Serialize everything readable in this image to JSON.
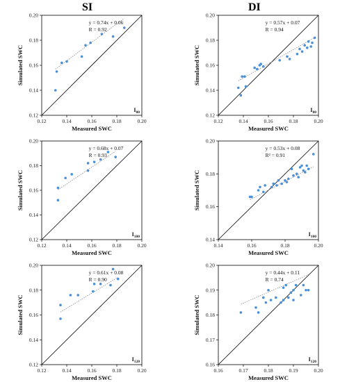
{
  "columns": {
    "left": "SI",
    "right": "DI"
  },
  "chart_data": [
    {
      "type": "scatter",
      "title": "SI",
      "tag": "I80",
      "xlabel": "Measured SWC",
      "ylabel": "Simulated SWC",
      "xlim": [
        0.12,
        0.2
      ],
      "ylim": [
        0.12,
        0.2
      ],
      "xticks": [
        "0.12",
        "0.14",
        "0.16",
        "0.18",
        "0.20"
      ],
      "yticks": [
        "0.12",
        "0.14",
        "0.16",
        "0.18",
        "0.20"
      ],
      "equation": "y = 0.74x + 0.06",
      "r_text": "R = 0.92",
      "fit": {
        "slope": 0.74,
        "intercept": 0.06
      },
      "points": [
        [
          0.131,
          0.14
        ],
        [
          0.132,
          0.155
        ],
        [
          0.136,
          0.162
        ],
        [
          0.14,
          0.163
        ],
        [
          0.152,
          0.167
        ],
        [
          0.155,
          0.176
        ],
        [
          0.159,
          0.178
        ],
        [
          0.168,
          0.185
        ],
        [
          0.177,
          0.183
        ],
        [
          0.186,
          0.19
        ]
      ]
    },
    {
      "type": "scatter",
      "title": "DI",
      "tag": "I80",
      "xlabel": "Measured SWC",
      "ylabel": "Simulated SWC",
      "xlim": [
        0.12,
        0.2
      ],
      "ylim": [
        0.12,
        0.2
      ],
      "xticks": [
        "0.12",
        "0.14",
        "0.16",
        "0.18",
        "0.20"
      ],
      "yticks": [
        "0.12",
        "0.14",
        "0.16",
        "0.18",
        "0.20"
      ],
      "equation": "y = 0.57x + 0.07",
      "r_text": "R = 0.94",
      "fit": {
        "slope": 0.57,
        "intercept": 0.07
      },
      "points": [
        [
          0.136,
          0.142
        ],
        [
          0.138,
          0.136
        ],
        [
          0.139,
          0.151
        ],
        [
          0.141,
          0.151
        ],
        [
          0.142,
          0.143
        ],
        [
          0.149,
          0.158
        ],
        [
          0.151,
          0.157
        ],
        [
          0.153,
          0.16
        ],
        [
          0.154,
          0.161
        ],
        [
          0.156,
          0.159
        ],
        [
          0.169,
          0.164
        ],
        [
          0.175,
          0.167
        ],
        [
          0.177,
          0.165
        ],
        [
          0.183,
          0.169
        ],
        [
          0.185,
          0.173
        ],
        [
          0.187,
          0.171
        ],
        [
          0.189,
          0.176
        ],
        [
          0.191,
          0.174
        ],
        [
          0.192,
          0.179
        ],
        [
          0.194,
          0.175
        ],
        [
          0.195,
          0.178
        ],
        [
          0.197,
          0.182
        ]
      ]
    },
    {
      "type": "scatter",
      "title": "SI",
      "tag": "I100",
      "xlabel": "Measured SWC",
      "ylabel": "Simulated SWC",
      "xlim": [
        0.12,
        0.2
      ],
      "ylim": [
        0.12,
        0.2
      ],
      "xticks": [
        "0.12",
        "0.14",
        "0.16",
        "0.18",
        "0.20"
      ],
      "yticks": [
        "0.12",
        "0.14",
        "0.16",
        "0.18",
        "0.20"
      ],
      "equation": "y = 0.68x + 0.07",
      "r_text": "R = 0.93",
      "fit": {
        "slope": 0.68,
        "intercept": 0.07
      },
      "points": [
        [
          0.133,
          0.152
        ],
        [
          0.133,
          0.162
        ],
        [
          0.139,
          0.17
        ],
        [
          0.144,
          0.173
        ],
        [
          0.157,
          0.176
        ],
        [
          0.157,
          0.182
        ],
        [
          0.162,
          0.183
        ],
        [
          0.167,
          0.185
        ],
        [
          0.173,
          0.191
        ],
        [
          0.179,
          0.187
        ]
      ]
    },
    {
      "type": "scatter",
      "title": "DI",
      "tag": "I100",
      "xlabel": "Measured SWC",
      "ylabel": "Simulated SWC",
      "xlim": [
        0.14,
        0.2
      ],
      "ylim": [
        0.14,
        0.2
      ],
      "xticks": [
        "0.14",
        "0.16",
        "0.18",
        "0.20"
      ],
      "yticks": [
        "0.14",
        "0.16",
        "0.18",
        "0.20"
      ],
      "equation": "y = 0.53x + 0.08",
      "r_text": "R² = 0.91",
      "fit": {
        "slope": 0.53,
        "intercept": 0.08
      },
      "points": [
        [
          0.159,
          0.166
        ],
        [
          0.16,
          0.166
        ],
        [
          0.164,
          0.17
        ],
        [
          0.165,
          0.172
        ],
        [
          0.167,
          0.169
        ],
        [
          0.168,
          0.173
        ],
        [
          0.172,
          0.172
        ],
        [
          0.173,
          0.174
        ],
        [
          0.175,
          0.173
        ],
        [
          0.176,
          0.176
        ],
        [
          0.178,
          0.174
        ],
        [
          0.18,
          0.176
        ],
        [
          0.181,
          0.175
        ],
        [
          0.182,
          0.177
        ],
        [
          0.184,
          0.183
        ],
        [
          0.185,
          0.179
        ],
        [
          0.187,
          0.18
        ],
        [
          0.188,
          0.178
        ],
        [
          0.189,
          0.184
        ],
        [
          0.19,
          0.185
        ],
        [
          0.191,
          0.182
        ],
        [
          0.192,
          0.181
        ],
        [
          0.193,
          0.185
        ],
        [
          0.194,
          0.183
        ],
        [
          0.197,
          0.192
        ]
      ]
    },
    {
      "type": "scatter",
      "title": "SI",
      "tag": "I120",
      "xlabel": "Measured SWC",
      "ylabel": "Simulated SWC",
      "xlim": [
        0.12,
        0.2
      ],
      "ylim": [
        0.12,
        0.2
      ],
      "xticks": [
        "0.12",
        "0.14",
        "0.16",
        "0.18",
        "0.20"
      ],
      "yticks": [
        "0.12",
        "0.14",
        "0.16",
        "0.18",
        "0.20"
      ],
      "equation": "y = 0.61x + 0.08",
      "r_text": "R = 0.90",
      "fit": {
        "slope": 0.61,
        "intercept": 0.08
      },
      "points": [
        [
          0.135,
          0.157
        ],
        [
          0.135,
          0.168
        ],
        [
          0.143,
          0.176
        ],
        [
          0.149,
          0.176
        ],
        [
          0.161,
          0.179
        ],
        [
          0.162,
          0.185
        ],
        [
          0.167,
          0.185
        ],
        [
          0.175,
          0.184
        ],
        [
          0.177,
          0.197
        ],
        [
          0.181,
          0.189
        ]
      ]
    },
    {
      "type": "scatter",
      "title": "DI",
      "tag": "I120",
      "xlabel": "Measured SWC",
      "ylabel": "Simulated SWC",
      "xlim": [
        0.16,
        0.2
      ],
      "ylim": [
        0.16,
        0.2
      ],
      "xticks": [
        "0.16",
        "0.17",
        "0.18",
        "0.19",
        "0.20"
      ],
      "yticks": [
        "0.16",
        "0.17",
        "0.18",
        "0.19",
        "0.20"
      ],
      "equation": "y = 0.44x + 0.11",
      "r_text": "R = 0.74",
      "fit": {
        "slope": 0.44,
        "intercept": 0.11
      },
      "points": [
        [
          0.169,
          0.181
        ],
        [
          0.175,
          0.183
        ],
        [
          0.176,
          0.181
        ],
        [
          0.178,
          0.187
        ],
        [
          0.179,
          0.185
        ],
        [
          0.18,
          0.19
        ],
        [
          0.181,
          0.186
        ],
        [
          0.183,
          0.187
        ],
        [
          0.185,
          0.185
        ],
        [
          0.186,
          0.191
        ],
        [
          0.186,
          0.186
        ],
        [
          0.187,
          0.192
        ],
        [
          0.188,
          0.187
        ],
        [
          0.189,
          0.189
        ],
        [
          0.19,
          0.186
        ],
        [
          0.19,
          0.19
        ],
        [
          0.191,
          0.192
        ],
        [
          0.193,
          0.188
        ],
        [
          0.194,
          0.192
        ],
        [
          0.195,
          0.19
        ],
        [
          0.196,
          0.19
        ]
      ]
    }
  ],
  "colors": {
    "point": "#4a90d9",
    "trend": "#8a8a8a",
    "identity": "#000000",
    "axis": "#000000"
  }
}
